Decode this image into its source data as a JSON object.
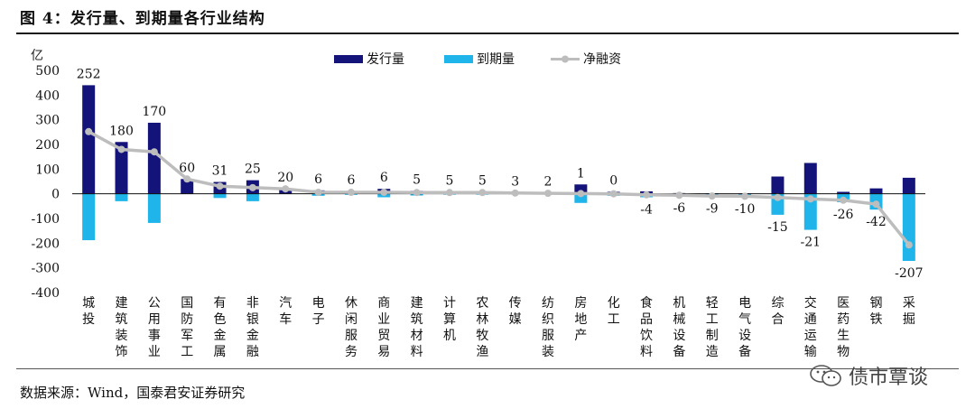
{
  "figure_title": "图 4：发行量、到期量各行业结构",
  "source": "数据来源：Wind，国泰君安证券研究",
  "watermark": "债市覃谈",
  "colors": {
    "issuance": "#13137a",
    "maturity": "#1fb4ea",
    "net": "#bdbdbd"
  },
  "chart_data": {
    "type": "bar",
    "ylabel": "亿",
    "ylim": [
      -400,
      500
    ],
    "yticks": [
      500,
      400,
      300,
      200,
      100,
      0,
      -100,
      -200,
      -300,
      -400
    ],
    "legend": {
      "position": "top",
      "entries": [
        "发行量",
        "到期量",
        "净融资"
      ]
    },
    "categories": [
      "城投",
      "建筑装饰",
      "公用事业",
      "国防军工",
      "有色金属",
      "非银金融",
      "汽车",
      "电子",
      "休闲服务",
      "商业贸易",
      "建筑材料",
      "计算机",
      "农林牧渔",
      "传媒",
      "纺织服装",
      "房地产",
      "化工",
      "食品饮料",
      "机械设备",
      "轻工制造",
      "电气设备",
      "综合",
      "交通运输",
      "医药生物",
      "钢铁",
      "采掘"
    ],
    "series": [
      {
        "name": "发行量",
        "kind": "bar",
        "values": [
          440,
          210,
          288,
          60,
          48,
          55,
          20,
          14,
          10,
          20,
          12,
          8,
          8,
          5,
          4,
          38,
          8,
          10,
          3,
          2,
          2,
          70,
          125,
          8,
          22,
          65
        ]
      },
      {
        "name": "到期量",
        "kind": "bar",
        "values": [
          -188,
          -30,
          -118,
          0,
          -17,
          -30,
          0,
          -8,
          -4,
          -14,
          -7,
          -3,
          -3,
          -2,
          -2,
          -37,
          -8,
          -14,
          -9,
          -11,
          -12,
          -85,
          -146,
          -34,
          -64,
          -272
        ]
      },
      {
        "name": "净融资",
        "kind": "line",
        "values": [
          252,
          180,
          170,
          60,
          31,
          25,
          20,
          6,
          6,
          6,
          5,
          5,
          5,
          3,
          2,
          1,
          0,
          -4,
          -6,
          -9,
          -10,
          -15,
          -21,
          -26,
          -42,
          -207
        ],
        "labels": [
          "252",
          "180",
          "170",
          "60",
          "31",
          "25",
          "20",
          "6",
          "6",
          "6",
          "5",
          "5",
          "5",
          "3",
          "2",
          "1",
          "0",
          "-4",
          "-6",
          "-9",
          "-10",
          "-15",
          "-21",
          "-26",
          "-42",
          "-207"
        ]
      }
    ]
  }
}
